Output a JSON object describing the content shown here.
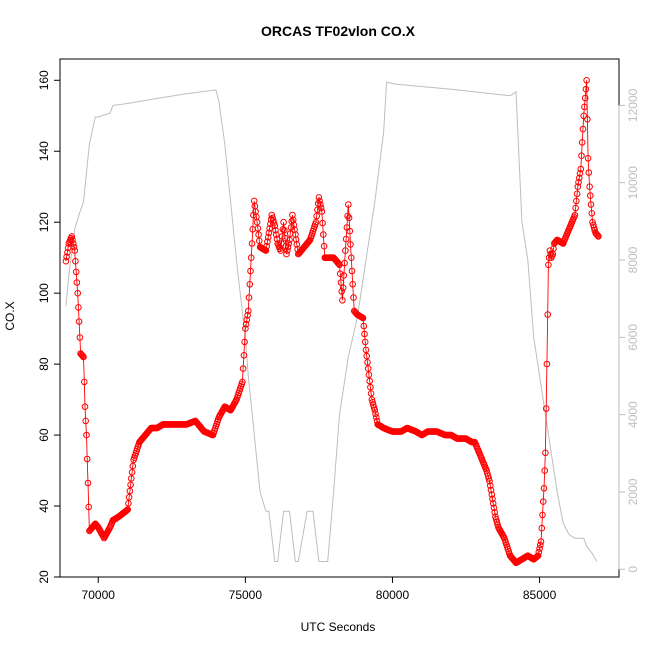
{
  "chart_data": {
    "type": "line",
    "title": "ORCAS TF02vlon CO.X",
    "xlabel": "UTC Seconds",
    "ylabel": "CO.X",
    "xlim": [
      68700,
      87700
    ],
    "ylim": [
      20,
      166
    ],
    "x_ticks": [
      "70000",
      "75000",
      "80000",
      "85000"
    ],
    "y_ticks": [
      "20",
      "40",
      "60",
      "80",
      "100",
      "120",
      "140",
      "160"
    ],
    "y2lim": [
      -200,
      13200
    ],
    "y2_ticks": [
      "0",
      "2000",
      "4000",
      "6000",
      "8000",
      "10000",
      "12000"
    ],
    "grid": false,
    "legend": "none",
    "colors": {
      "co": "#ff0000",
      "altitude": "#bebebe",
      "axes": "#000000",
      "secondary_axis": "#bebebe"
    },
    "series": [
      {
        "axis": "left",
        "style": "points-and-line",
        "x": [
          68900,
          69000,
          69100,
          69200,
          69300,
          69350,
          69400,
          69500,
          69550,
          69600,
          69700,
          69800,
          69900,
          70000,
          70200,
          70400,
          70500,
          70700,
          71000,
          71200,
          71400,
          71700,
          71800,
          72000,
          72200,
          72500,
          72700,
          73000,
          73300,
          73600,
          73900,
          74100,
          74300,
          74500,
          74700,
          74900,
          75000,
          75100,
          75200,
          75300,
          75400,
          75500,
          75700,
          75800,
          75900,
          76000,
          76100,
          76200,
          76300,
          76400,
          76500,
          76600,
          76800,
          77000,
          77200,
          77400,
          77500,
          77600,
          77700,
          77800,
          78000,
          78200,
          78300,
          78400,
          78500,
          78600,
          78700,
          78800,
          79000,
          79100,
          79200,
          79300,
          79400,
          79500,
          79700,
          80000,
          80300,
          80500,
          80800,
          81000,
          81200,
          81500,
          81800,
          82000,
          82200,
          82500,
          82700,
          82800,
          83000,
          83200,
          83300,
          83400,
          83500,
          83600,
          83800,
          84000,
          84200,
          84400,
          84600,
          84800,
          84950,
          85050,
          85150,
          85200,
          85250,
          85300,
          85350,
          85400,
          85450,
          85500,
          85600,
          85800,
          86000,
          86200,
          86300,
          86400,
          86500,
          86600,
          86650,
          86700,
          86800,
          86900,
          87000
        ],
        "y": [
          109,
          114,
          116,
          112,
          100,
          92,
          83,
          82,
          68,
          60,
          33,
          34,
          35,
          34,
          31,
          34,
          36,
          37,
          39,
          53,
          58,
          61,
          62,
          62,
          63,
          63,
          63,
          63,
          64,
          61,
          60,
          65,
          68,
          67,
          70,
          75,
          90,
          95,
          110,
          126,
          120,
          113,
          112,
          117,
          122,
          119,
          114,
          112,
          120,
          111,
          115,
          122,
          111,
          113,
          115,
          120,
          127,
          123,
          110,
          110,
          110,
          108,
          98,
          112,
          125,
          110,
          95,
          94,
          93,
          84,
          77,
          70,
          67,
          63,
          62,
          61,
          61,
          62,
          61,
          60,
          61,
          61,
          60,
          60,
          59,
          59,
          58,
          58,
          54,
          50,
          47,
          42,
          37,
          34,
          31,
          26,
          24,
          25,
          26,
          25,
          26,
          30,
          45,
          55,
          80,
          108,
          112,
          110,
          111,
          114,
          115,
          114,
          118,
          122,
          130,
          135,
          150,
          160,
          138,
          130,
          120,
          117,
          116
        ]
      },
      {
        "axis": "right",
        "style": "line",
        "x": [
          68900,
          69000,
          69200,
          69400,
          69500,
          69700,
          69900,
          70000,
          70400,
          70500,
          71000,
          72000,
          73000,
          74000,
          74100,
          74300,
          74500,
          74700,
          74800,
          75000,
          75100,
          75300,
          75500,
          75700,
          75800,
          76000,
          76100,
          76300,
          76500,
          76700,
          76800,
          77100,
          77300,
          77500,
          77700,
          77800,
          78000,
          78200,
          78500,
          78800,
          79100,
          79400,
          79700,
          79800,
          80100,
          82000,
          84000,
          84200,
          84400,
          84600,
          84800,
          85000,
          85200,
          85400,
          85600,
          85800,
          86000,
          86200,
          86400,
          86500,
          86600,
          86800,
          86950
        ],
        "y": [
          6800,
          7600,
          8800,
          9300,
          9500,
          11000,
          11700,
          11700,
          11800,
          12000,
          12050,
          12180,
          12300,
          12400,
          12100,
          11000,
          9500,
          8000,
          7300,
          6000,
          5000,
          3500,
          2000,
          1500,
          1500,
          200,
          200,
          1500,
          1500,
          200,
          200,
          1500,
          1500,
          200,
          200,
          200,
          2000,
          4000,
          5500,
          6500,
          8000,
          9500,
          11300,
          12600,
          12550,
          12420,
          12250,
          12350,
          9000,
          8000,
          6000,
          5000,
          4000,
          3000,
          2000,
          1200,
          900,
          800,
          800,
          800,
          600,
          400,
          200
        ]
      }
    ]
  }
}
